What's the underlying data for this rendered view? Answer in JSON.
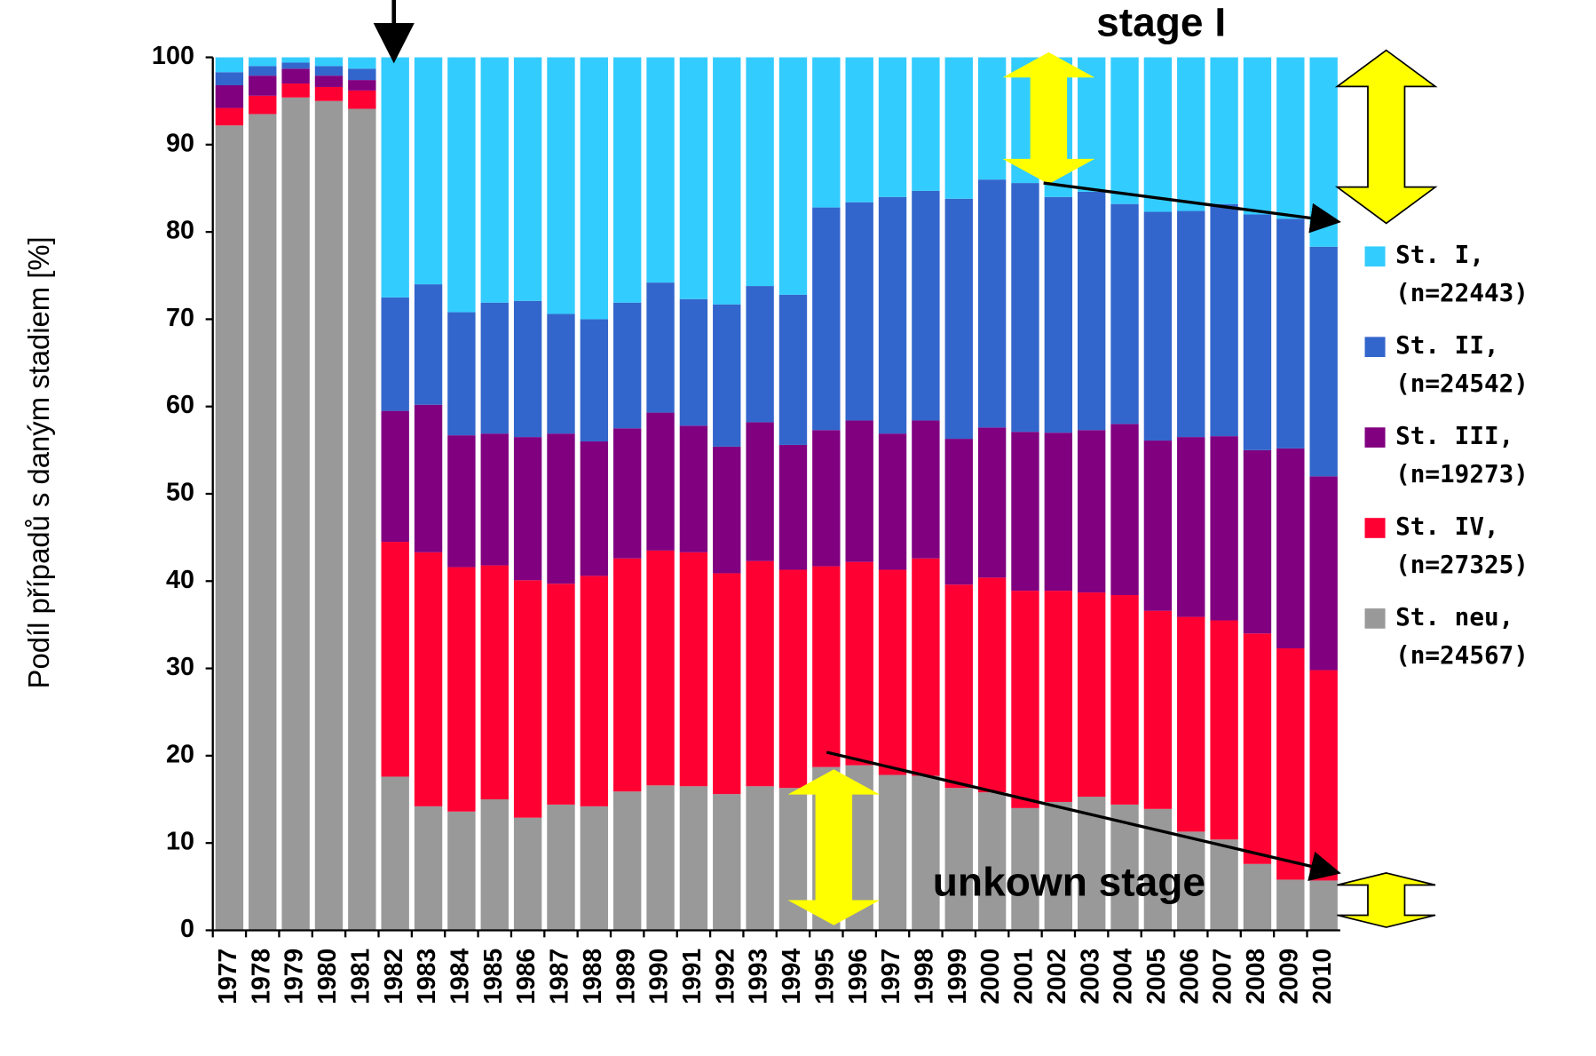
{
  "chart_data": {
    "type": "stacked_bar",
    "y_label": "Podíl případů s daným stadiem [%]",
    "categories": [
      "1977",
      "1978",
      "1979",
      "1980",
      "1981",
      "1982",
      "1983",
      "1984",
      "1985",
      "1986",
      "1987",
      "1988",
      "1989",
      "1990",
      "1991",
      "1992",
      "1993",
      "1994",
      "1995",
      "1996",
      "1997",
      "1998",
      "1999",
      "2000",
      "2001",
      "2002",
      "2003",
      "2004",
      "2005",
      "2006",
      "2007",
      "2008",
      "2009",
      "2010"
    ],
    "series": [
      {
        "name": "St. I,",
        "count_label": "(n=22443)",
        "color": "#33ccff",
        "values": [
          1.7,
          1.0,
          0.6,
          1.0,
          1.3,
          27.5,
          26.0,
          29.2,
          28.1,
          27.9,
          29.4,
          30.0,
          28.1,
          25.8,
          27.7,
          28.3,
          26.2,
          27.2,
          17.2,
          16.6,
          16.0,
          15.3,
          16.2,
          14.0,
          14.4,
          16.0,
          15.4,
          16.8,
          17.7,
          17.6,
          16.8,
          18.0,
          18.5,
          21.7
        ]
      },
      {
        "name": "St. II,",
        "count_label": "(n=24542)",
        "color": "#3366cc",
        "values": [
          1.5,
          1.1,
          0.7,
          1.1,
          1.3,
          13.0,
          13.8,
          14.1,
          15.0,
          15.6,
          13.7,
          14.0,
          14.4,
          14.9,
          14.5,
          16.3,
          15.6,
          17.2,
          25.5,
          25.0,
          27.1,
          26.3,
          27.5,
          28.4,
          28.5,
          27.0,
          27.3,
          25.2,
          26.2,
          25.9,
          26.6,
          27.0,
          26.3,
          26.3
        ]
      },
      {
        "name": "St. III,",
        "count_label": "(n=19273)",
        "color": "#800080",
        "values": [
          2.6,
          2.3,
          1.7,
          1.3,
          1.2,
          15.0,
          16.9,
          15.1,
          15.1,
          16.4,
          17.2,
          15.4,
          14.9,
          15.8,
          14.5,
          14.5,
          15.9,
          14.3,
          15.6,
          16.2,
          15.6,
          15.8,
          16.7,
          17.2,
          18.2,
          18.1,
          18.6,
          19.6,
          19.5,
          20.6,
          21.1,
          21.0,
          22.9,
          22.2
        ]
      },
      {
        "name": "St. IV,",
        "count_label": "(n=27325)",
        "color": "#ff0033",
        "values": [
          2.0,
          2.1,
          1.6,
          1.6,
          2.1,
          26.9,
          29.1,
          28.0,
          26.8,
          27.2,
          25.3,
          26.4,
          26.7,
          26.9,
          26.8,
          25.3,
          25.8,
          25.0,
          23.0,
          23.3,
          23.5,
          24.9,
          23.3,
          24.6,
          24.9,
          24.2,
          23.4,
          24.0,
          22.7,
          24.6,
          25.1,
          26.4,
          26.5,
          24.1
        ]
      },
      {
        "name": "St. neu,",
        "count_label": "(n=24567)",
        "color": "#999999",
        "values": [
          92.2,
          93.5,
          95.4,
          95.0,
          94.1,
          17.6,
          14.2,
          13.6,
          15.0,
          12.9,
          14.4,
          14.2,
          15.9,
          16.6,
          16.5,
          15.6,
          16.5,
          16.3,
          18.7,
          18.9,
          17.8,
          17.7,
          16.3,
          15.8,
          14.0,
          14.7,
          15.3,
          14.4,
          13.9,
          11.3,
          10.4,
          7.6,
          5.8,
          5.7
        ]
      }
    ],
    "ylim": [
      0,
      100
    ],
    "yticks": [
      0,
      10,
      20,
      30,
      40,
      50,
      60,
      70,
      80,
      90,
      100
    ],
    "legend": "right",
    "annotations": [
      "stage I",
      "unkown stage"
    ]
  }
}
